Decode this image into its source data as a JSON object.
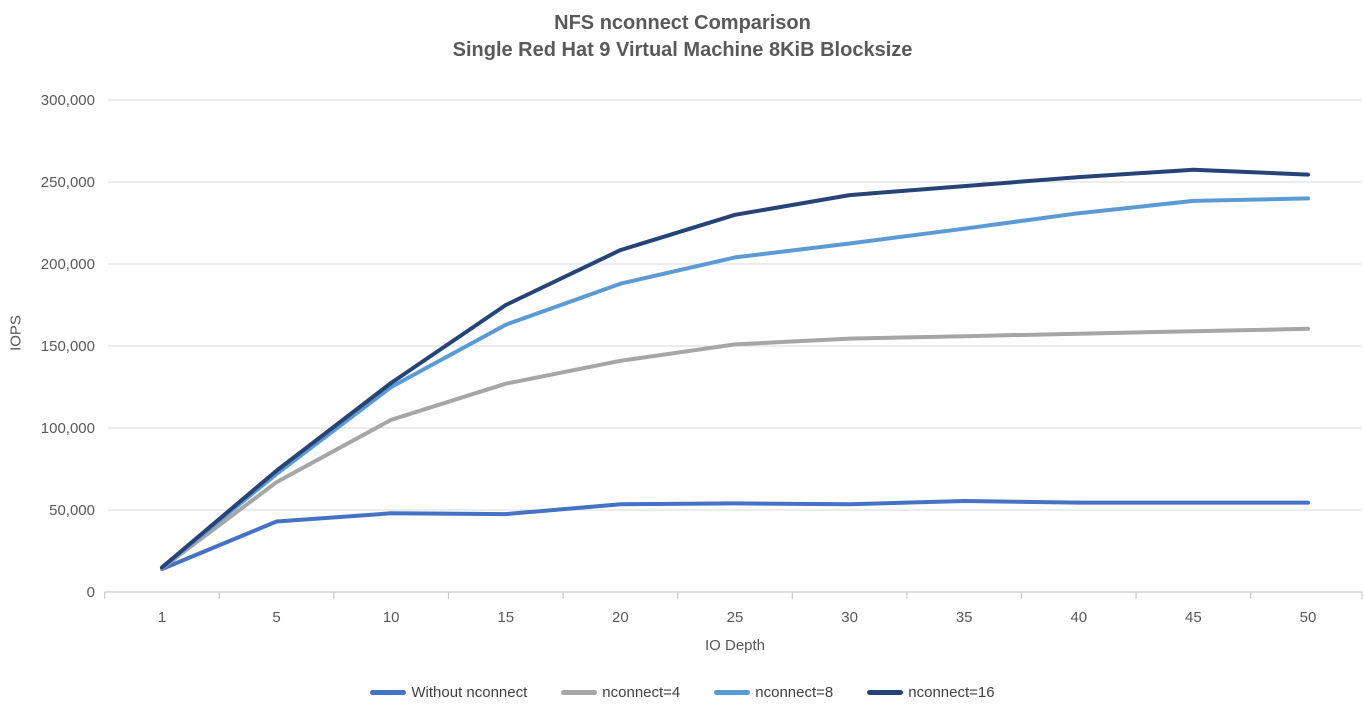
{
  "page": {
    "background": "#ffffff"
  },
  "chart_data": {
    "type": "line",
    "title": "NFS nconnect Comparison",
    "subtitle": "Single Red Hat 9 Virtual Machine 8KiB Blocksize",
    "xlabel": "IO Depth",
    "ylabel": "IOPS",
    "categories": [
      1,
      5,
      10,
      15,
      20,
      25,
      30,
      35,
      40,
      45,
      50
    ],
    "y_ticks": [
      "0",
      "50,000",
      "100,000",
      "150,000",
      "200,000",
      "250,000",
      "300,000"
    ],
    "ylim": [
      0,
      300000
    ],
    "y_tick_step": 50000,
    "grid": true,
    "legend_position": "bottom",
    "colors": {
      "axis": "#c9c9c9",
      "gridline": "#d9d9d9",
      "tick_text": "#595959",
      "title_text": "#595959"
    },
    "series": [
      {
        "name": "Without nconnect",
        "color": "#4472C4",
        "values": [
          14000,
          43000,
          48000,
          47500,
          53500,
          54000,
          53500,
          55500,
          54500,
          54500,
          54500
        ]
      },
      {
        "name": "nconnect=4",
        "color": "#A6A6A6",
        "values": [
          14500,
          67000,
          105000,
          127000,
          141000,
          151000,
          154500,
          156000,
          157500,
          159000,
          160500
        ]
      },
      {
        "name": "nconnect=8",
        "color": "#5B9BD5",
        "values": [
          15000,
          72000,
          125000,
          163000,
          188000,
          204000,
          212500,
          221500,
          231000,
          238500,
          240000
        ]
      },
      {
        "name": "nconnect=16",
        "color": "#264478",
        "values": [
          15000,
          74000,
          127500,
          175000,
          208500,
          230000,
          242000,
          247500,
          253000,
          257500,
          254500
        ]
      }
    ]
  }
}
